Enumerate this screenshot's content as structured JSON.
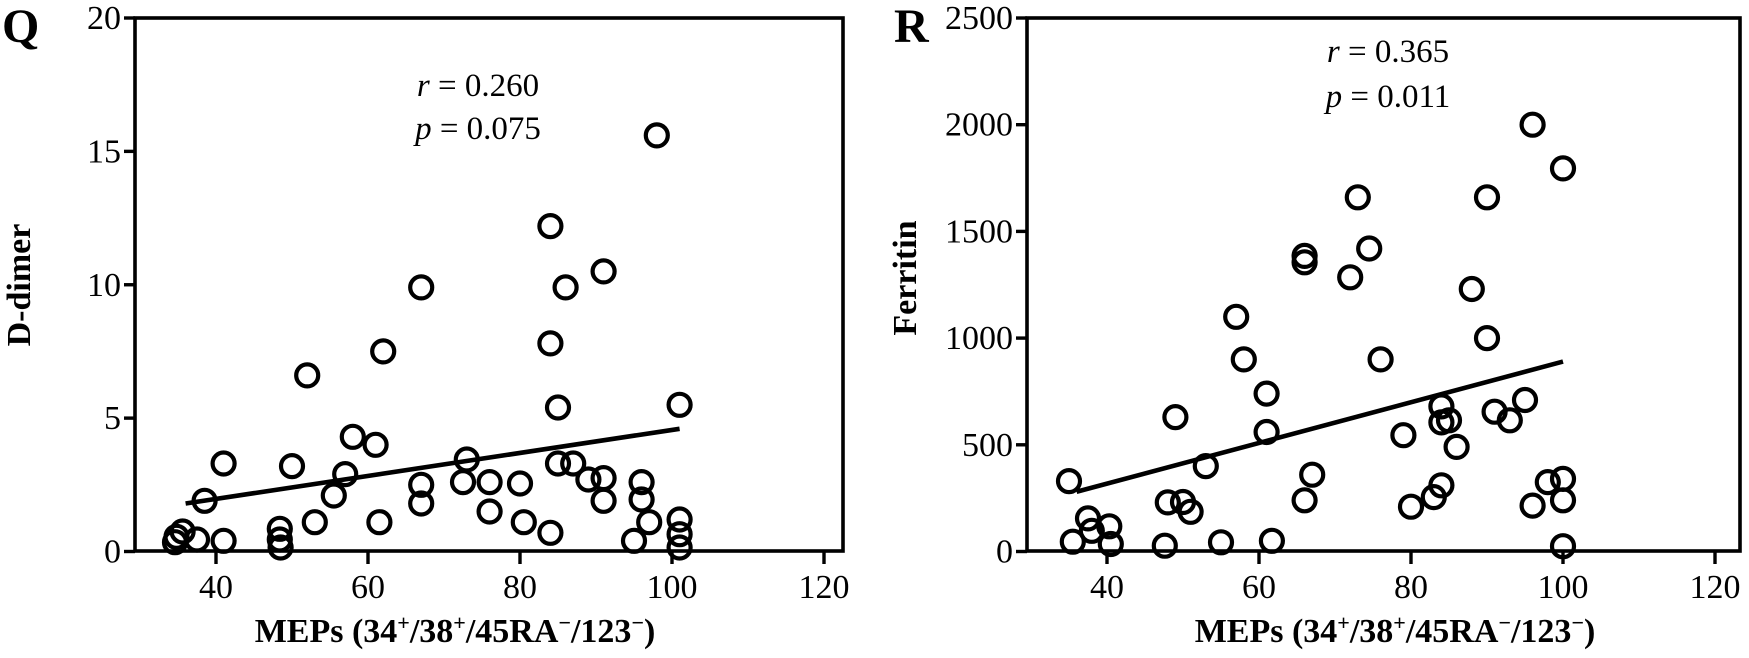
{
  "colors": {
    "foreground": "#000000",
    "background": "#ffffff"
  },
  "chart_data": [
    {
      "panel_label": "Q",
      "type": "scatter",
      "title": "",
      "xlabel_plain": "MEPs (34+/38+/45RA−/123−)",
      "xlabel_parts": [
        [
          "MEPs (34",
          false
        ],
        [
          "+",
          true
        ],
        [
          "/38",
          false
        ],
        [
          "+",
          true
        ],
        [
          "/45RA",
          false
        ],
        [
          "−",
          true
        ],
        [
          "/123",
          false
        ],
        [
          "−",
          true
        ],
        [
          ")",
          false
        ]
      ],
      "ylabel": "D-dimer",
      "x_ticks": [
        40,
        60,
        80,
        100,
        120
      ],
      "y_ticks": [
        0,
        5,
        10,
        15,
        20
      ],
      "xlim": [
        29,
        122.5
      ],
      "ylim": [
        0,
        20
      ],
      "grid": false,
      "r": "0.260",
      "p": "0.075",
      "annotation_lines": [
        "r = 0.260",
        "p = 0.075"
      ],
      "trend_line": {
        "x1": 36,
        "y1": 1.8,
        "x2": 101,
        "y2": 4.6
      },
      "points": [
        [
          98,
          15.6
        ],
        [
          84,
          12.2
        ],
        [
          91,
          10.5
        ],
        [
          86,
          9.9
        ],
        [
          67,
          9.9
        ],
        [
          84,
          7.8
        ],
        [
          62,
          7.5
        ],
        [
          52,
          6.6
        ],
        [
          101,
          5.5
        ],
        [
          85,
          5.4
        ],
        [
          58,
          4.3
        ],
        [
          61,
          4.0
        ],
        [
          73,
          3.45
        ],
        [
          85,
          3.3
        ],
        [
          87,
          3.3
        ],
        [
          41,
          3.3
        ],
        [
          50,
          3.2
        ],
        [
          57,
          2.9
        ],
        [
          91,
          2.75
        ],
        [
          89,
          2.7
        ],
        [
          72.5,
          2.6
        ],
        [
          76,
          2.6
        ],
        [
          96,
          2.6
        ],
        [
          80,
          2.55
        ],
        [
          67,
          2.5
        ],
        [
          55.5,
          2.1
        ],
        [
          96,
          1.95
        ],
        [
          38.5,
          1.9
        ],
        [
          91,
          1.9
        ],
        [
          67,
          1.8
        ],
        [
          76,
          1.5
        ],
        [
          101,
          1.2
        ],
        [
          53,
          1.1
        ],
        [
          61.5,
          1.1
        ],
        [
          80.5,
          1.1
        ],
        [
          97,
          1.1
        ],
        [
          48.4,
          0.85
        ],
        [
          35.6,
          0.75
        ],
        [
          84,
          0.7
        ],
        [
          101,
          0.65
        ],
        [
          34.8,
          0.55
        ],
        [
          37.5,
          0.45
        ],
        [
          48.4,
          0.45
        ],
        [
          41,
          0.4
        ],
        [
          95,
          0.4
        ],
        [
          34.6,
          0.35
        ],
        [
          48.5,
          0.15
        ],
        [
          101,
          0.15
        ]
      ]
    },
    {
      "panel_label": "R",
      "type": "scatter",
      "title": "",
      "xlabel_plain": "MEPs (34+/38+/45RA−/123−)",
      "xlabel_parts": [
        [
          "MEPs (34",
          false
        ],
        [
          "+",
          true
        ],
        [
          "/38",
          false
        ],
        [
          "+",
          true
        ],
        [
          "/45RA",
          false
        ],
        [
          "−",
          true
        ],
        [
          "/123",
          false
        ],
        [
          "−",
          true
        ],
        [
          ")",
          false
        ]
      ],
      "ylabel": "Ferritin",
      "x_ticks": [
        40,
        60,
        80,
        100,
        120
      ],
      "y_ticks": [
        0,
        500,
        1000,
        1500,
        2000,
        2500
      ],
      "xlim": [
        29,
        122.5
      ],
      "ylim": [
        0,
        2500
      ],
      "grid": false,
      "r": "0.365",
      "p": "0.011",
      "annotation_lines": [
        "r = 0.365",
        "p = 0.011"
      ],
      "trend_line": {
        "x1": 36,
        "y1": 280,
        "x2": 100,
        "y2": 890
      },
      "points": [
        [
          96,
          2000
        ],
        [
          100,
          1795
        ],
        [
          73,
          1660
        ],
        [
          90,
          1660
        ],
        [
          74.5,
          1420
        ],
        [
          66,
          1385
        ],
        [
          66,
          1355
        ],
        [
          72,
          1285
        ],
        [
          88,
          1230
        ],
        [
          57,
          1100
        ],
        [
          90,
          1000
        ],
        [
          58,
          900
        ],
        [
          76,
          900
        ],
        [
          61,
          740
        ],
        [
          95,
          710
        ],
        [
          84,
          680
        ],
        [
          91,
          655
        ],
        [
          49,
          630
        ],
        [
          85,
          615
        ],
        [
          93,
          615
        ],
        [
          84,
          605
        ],
        [
          61,
          560
        ],
        [
          79,
          545
        ],
        [
          86,
          490
        ],
        [
          53,
          400
        ],
        [
          67,
          360
        ],
        [
          100,
          340
        ],
        [
          35,
          330
        ],
        [
          98,
          325
        ],
        [
          84,
          310
        ],
        [
          83,
          255
        ],
        [
          66,
          240
        ],
        [
          100,
          240
        ],
        [
          50,
          232
        ],
        [
          48,
          230
        ],
        [
          96,
          215
        ],
        [
          80,
          210
        ],
        [
          51,
          186
        ],
        [
          37.5,
          155
        ],
        [
          40.3,
          118
        ],
        [
          38,
          97
        ],
        [
          61.7,
          50
        ],
        [
          35.5,
          46
        ],
        [
          55,
          43
        ],
        [
          40.5,
          35
        ],
        [
          47.6,
          27
        ],
        [
          100,
          25
        ]
      ]
    }
  ]
}
